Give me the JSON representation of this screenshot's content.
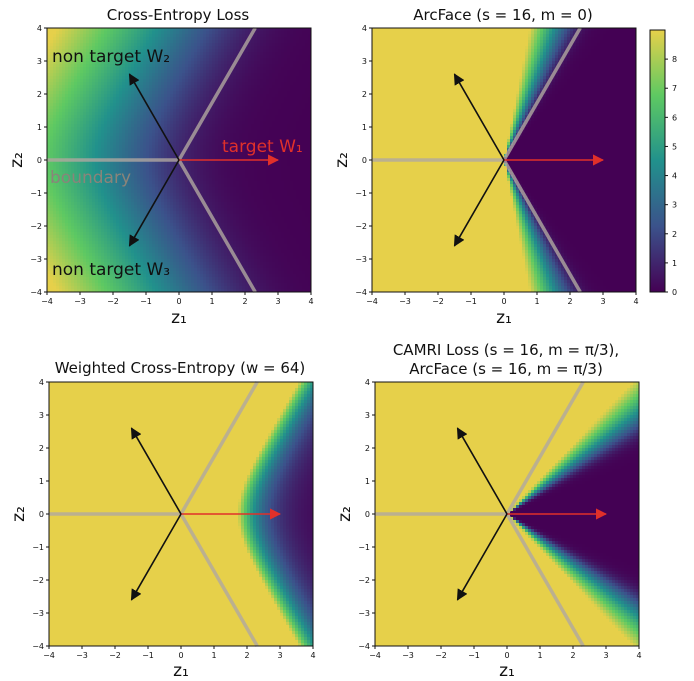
{
  "chart_data": [
    {
      "type": "heatmap",
      "title": "Cross-Entropy Loss",
      "xlabel": "z₁",
      "ylabel": "z₂",
      "xlim": [
        -4,
        4
      ],
      "ylim": [
        -4,
        4
      ],
      "xticks": [
        "−4",
        "−3",
        "−2",
        "−1",
        "0",
        "1",
        "2",
        "3",
        "4"
      ],
      "yticks": [
        "4",
        "3",
        "2",
        "1",
        "0",
        "−1",
        "−2",
        "−3",
        "−4"
      ],
      "model": "ce",
      "annotations": {
        "non_target_top": "non target W₂",
        "non_target_bottom": "non target W₃",
        "target": "target W₁",
        "boundary": "boundary"
      }
    },
    {
      "type": "heatmap",
      "title": "ArcFace (s = 16, m = 0)",
      "xlabel": "z₁",
      "ylabel": "z₂",
      "xlim": [
        -4,
        4
      ],
      "ylim": [
        -4,
        4
      ],
      "xticks": [
        "−4",
        "−3",
        "−2",
        "−1",
        "0",
        "1",
        "2",
        "3",
        "4"
      ],
      "yticks": [
        "4",
        "3",
        "2",
        "1",
        "0",
        "−1",
        "−2",
        "−3",
        "−4"
      ],
      "model": "arc0"
    },
    {
      "type": "heatmap",
      "title": "Weighted Cross-Entropy (w = 64)",
      "xlabel": "z₁",
      "ylabel": "z₂",
      "xlim": [
        -4,
        4
      ],
      "ylim": [
        -4,
        4
      ],
      "xticks": [
        "−4",
        "−3",
        "−2",
        "−1",
        "0",
        "1",
        "2",
        "3",
        "4"
      ],
      "yticks": [
        "4",
        "3",
        "2",
        "1",
        "0",
        "−1",
        "−2",
        "−3",
        "−4"
      ],
      "model": "wce"
    },
    {
      "type": "heatmap",
      "title_line1": "CAMRI Loss (s = 16, m = π/3),",
      "title_line2": "ArcFace (s = 16, m = π/3)",
      "xlabel": "z₁",
      "ylabel": "z₂",
      "xlim": [
        -4,
        4
      ],
      "ylim": [
        -4,
        4
      ],
      "xticks": [
        "−4",
        "−3",
        "−2",
        "−1",
        "0",
        "1",
        "2",
        "3",
        "4"
      ],
      "yticks": [
        "4",
        "3",
        "2",
        "1",
        "0",
        "−1",
        "−2",
        "−3",
        "−4"
      ],
      "model": "camri"
    }
  ],
  "colorbar": {
    "range": [
      0,
      9
    ],
    "ticks": [
      "8",
      "7",
      "6",
      "5",
      "4",
      "3",
      "2",
      "1",
      "0"
    ],
    "colormap": "viridis"
  },
  "colors": {
    "target_arrow": "#e0302a",
    "non_target_arrow": "#111111",
    "boundary_line": "#b0a8a0",
    "high": "#e6d04a",
    "low": "#3b1f54"
  },
  "icons": {
    "arrows": "arrow-icon"
  }
}
